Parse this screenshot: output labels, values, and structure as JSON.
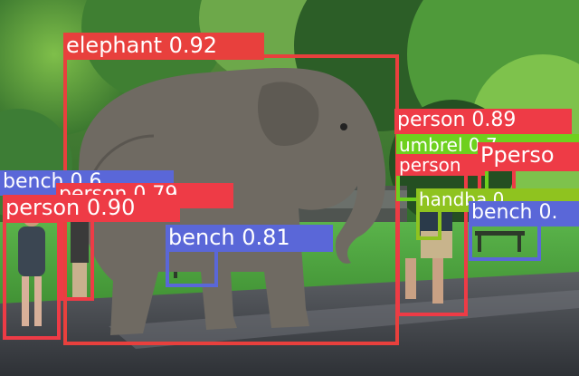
{
  "image": {
    "description_free": true
  },
  "colors": {
    "elephant": "#e8403d",
    "person": "#ee3b46",
    "bench": "#5a67d8",
    "umbrella": "#6ed01e",
    "handbag": "#8fc31f",
    "label_text": "#ffffff"
  },
  "detections": [
    {
      "class": "elephant",
      "text": "elephant 0.92",
      "confidence": 0.92
    },
    {
      "class": "person",
      "text": "person 0.89",
      "confidence": 0.89
    },
    {
      "class": "person",
      "text": "person 0.90",
      "confidence": 0.9
    },
    {
      "class": "person",
      "text": "person 0.79",
      "confidence": 0.79
    },
    {
      "class": "bench",
      "text": "bench 0.81",
      "confidence": 0.81
    },
    {
      "class": "bench",
      "text": "bench 0.6",
      "confidence": 0.6
    },
    {
      "class": "bench",
      "text": "bench 0.",
      "confidence": null
    },
    {
      "class": "person",
      "text": "person",
      "confidence": null
    },
    {
      "class": "person",
      "text": "Pperso",
      "confidence": null
    },
    {
      "class": "umbrella",
      "text": "umbrel 0.7",
      "confidence": 0.7
    },
    {
      "class": "handbag",
      "text": "handba 0.",
      "confidence": null
    }
  ]
}
